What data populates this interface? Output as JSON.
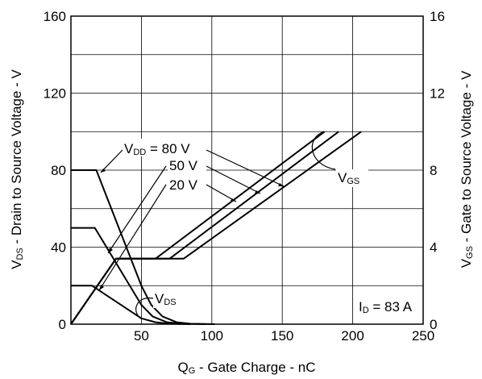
{
  "chart_data": {
    "type": "line",
    "title": "",
    "xlabel": {
      "main": "Q",
      "sub": "G",
      "rest": "  -  Gate Charge - nC"
    },
    "ylabel_left": {
      "main": "V",
      "sub": "DS",
      "rest": " -  Drain to Source Voltage - V"
    },
    "ylabel_right": {
      "main": "V",
      "sub": "GS",
      "rest": " - Gate to Source Voltage - V"
    },
    "xlim": [
      0,
      250
    ],
    "ylim_left": [
      0,
      160
    ],
    "ylim_right": [
      0,
      16
    ],
    "x_ticks": [
      "50",
      "100",
      "150",
      "200",
      "250"
    ],
    "y_left_ticks": [
      "0",
      "40",
      "80",
      "120",
      "160"
    ],
    "y_right_ticks": [
      "0",
      "4",
      "8",
      "12",
      "16"
    ],
    "grid": true,
    "left_axis_series": [
      {
        "name": "VDS, VDD = 80 V",
        "points": [
          [
            0,
            80
          ],
          [
            18,
            80
          ],
          [
            50,
            20
          ],
          [
            57,
            10
          ],
          [
            65,
            4
          ],
          [
            75,
            1
          ],
          [
            85,
            0.2
          ],
          [
            102,
            0
          ]
        ]
      },
      {
        "name": "VDS, VDD = 50 V",
        "points": [
          [
            0,
            50
          ],
          [
            17,
            50
          ],
          [
            50,
            10
          ],
          [
            58,
            4
          ],
          [
            68,
            1
          ],
          [
            80,
            0.2
          ],
          [
            95,
            0
          ]
        ]
      },
      {
        "name": "VDS, VDD = 20 V",
        "points": [
          [
            0,
            20
          ],
          [
            15,
            20
          ],
          [
            50,
            3
          ],
          [
            60,
            1
          ],
          [
            70,
            0.2
          ],
          [
            85,
            0
          ]
        ]
      }
    ],
    "right_axis_series": [
      {
        "name": "VGS, VDD = 20 V",
        "points": [
          [
            0,
            0
          ],
          [
            32,
            3.4
          ],
          [
            60,
            3.4
          ],
          [
            180,
            10
          ]
        ]
      },
      {
        "name": "VGS, VDD = 50 V",
        "points": [
          [
            0,
            0
          ],
          [
            32,
            3.4
          ],
          [
            70,
            3.4
          ],
          [
            190,
            10
          ]
        ]
      },
      {
        "name": "VGS, VDD = 80 V",
        "points": [
          [
            0,
            0
          ],
          [
            32,
            3.4
          ],
          [
            80,
            3.4
          ],
          [
            206,
            10
          ]
        ]
      }
    ],
    "annotations": {
      "vdd_main": "V",
      "vdd_sub": "DD",
      "vdd_80": " = 80 V",
      "vdd_50": "50 V",
      "vdd_20": "20 V",
      "vgs_main": "V",
      "vgs_sub": "GS",
      "vds_main": "V",
      "vds_sub": "DS",
      "id_main": "I",
      "id_sub": "D",
      "id_rest": " = 83 A"
    }
  }
}
